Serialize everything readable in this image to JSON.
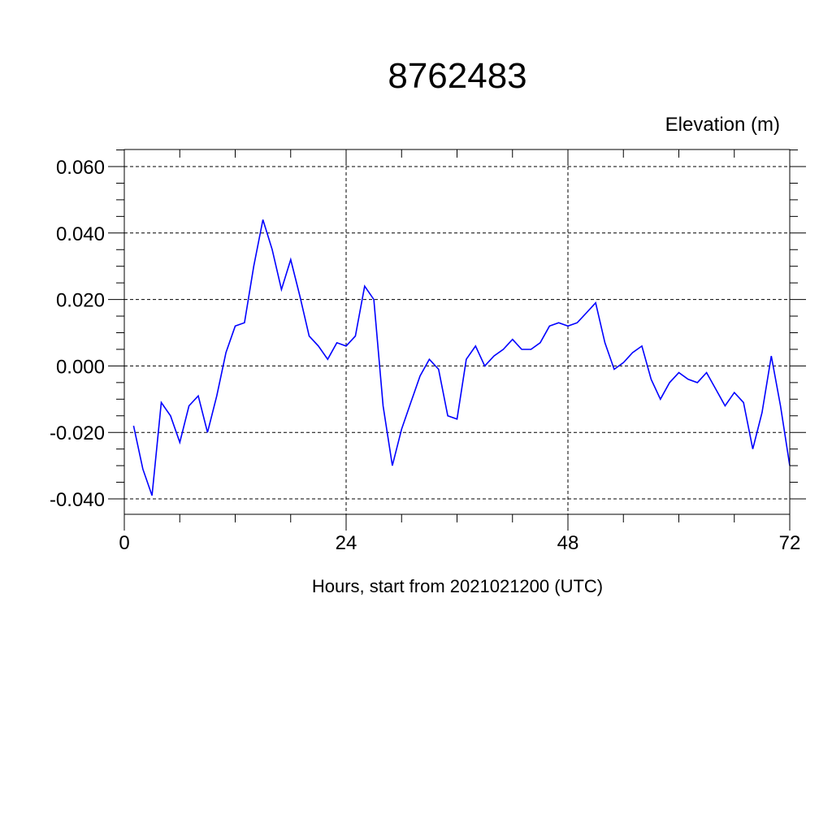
{
  "chart_data": {
    "type": "line",
    "title": "8762483",
    "ylabel": "Elevation (m)",
    "xlabel": "Hours, start from 2021021200 (UTC)",
    "xlim": [
      0,
      72
    ],
    "ylim": [
      -0.04,
      0.06
    ],
    "x_ticks": [
      0,
      24,
      48,
      72
    ],
    "x_tick_labels": [
      "0",
      "24",
      "48",
      "72"
    ],
    "y_ticks": [
      -0.04,
      -0.02,
      0.0,
      0.02,
      0.04,
      0.06
    ],
    "y_tick_labels": [
      "-0.040",
      "-0.020",
      "0.000",
      "0.020",
      "0.040",
      "0.060"
    ],
    "grid": true,
    "line_color": "#0000ff",
    "series": [
      {
        "x": [
          1,
          2,
          3,
          4,
          5,
          6,
          7,
          8,
          9,
          10,
          11,
          12,
          13,
          14,
          15,
          16,
          17,
          18,
          19,
          20,
          21,
          22,
          23,
          24,
          25,
          26,
          27,
          28,
          29,
          30,
          31,
          32,
          33,
          34,
          35,
          36,
          37,
          38,
          39,
          40,
          41,
          42,
          43,
          44,
          45,
          46,
          47,
          48,
          49,
          50,
          51,
          52,
          53,
          54,
          55,
          56,
          57,
          58,
          59,
          60,
          61,
          62,
          63,
          64,
          65,
          66,
          67,
          68,
          69,
          70,
          71,
          72
        ],
        "values": [
          -0.018,
          -0.031,
          -0.039,
          -0.011,
          -0.015,
          -0.023,
          -0.012,
          -0.009,
          -0.02,
          -0.009,
          0.004,
          0.012,
          0.013,
          0.03,
          0.044,
          0.035,
          0.023,
          0.032,
          0.021,
          0.009,
          0.006,
          0.002,
          0.007,
          0.006,
          0.009,
          0.024,
          0.02,
          -0.012,
          -0.03,
          -0.019,
          -0.011,
          -0.003,
          0.002,
          -0.001,
          -0.015,
          -0.016,
          0.002,
          0.006,
          0.0,
          0.003,
          0.005,
          0.008,
          0.005,
          0.005,
          0.007,
          0.012,
          0.013,
          0.012,
          0.013,
          0.016,
          0.019,
          0.007,
          -0.001,
          0.001,
          0.004,
          0.006,
          -0.004,
          -0.01,
          -0.005,
          -0.002,
          -0.004,
          -0.005,
          -0.002,
          -0.007,
          -0.012,
          -0.008,
          -0.011,
          -0.025,
          -0.014,
          0.003,
          -0.012,
          -0.03
        ]
      }
    ]
  }
}
